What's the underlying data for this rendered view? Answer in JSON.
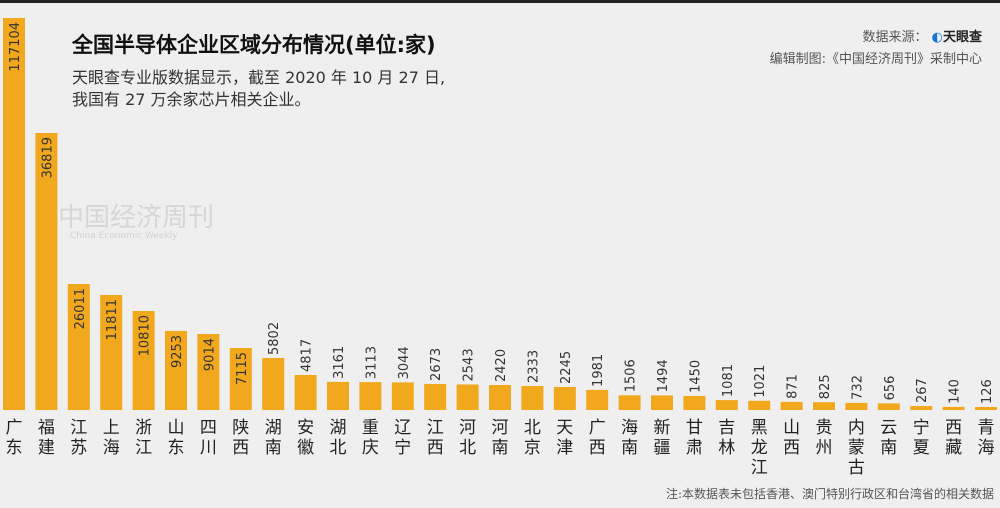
{
  "header": {
    "title": "全国半导体企业区域分布情况(单位:家)",
    "subtitle_line1": "天眼查专业版数据显示，截至 2020 年 10 月 27 日,",
    "subtitle_line2": "我国有 27 万余家芯片相关企业。",
    "source_label": "数据来源：",
    "source_logo": "天眼查",
    "editor": "编辑制图:《中国经济周刊》采制中心"
  },
  "watermark": {
    "cn": "中国经济周刊",
    "en": "China Economic Weekly"
  },
  "note": "注:本数据表未包括香港、澳门特别行政区和台湾省的相关数据",
  "colors": {
    "bar": "#f2a81d",
    "background": "#efefef"
  },
  "chart_data": {
    "type": "bar",
    "title": "全国半导体企业区域分布情况(单位:家)",
    "categories": [
      "广东",
      "福建",
      "江苏",
      "上海",
      "浙江",
      "山东",
      "四川",
      "陕西",
      "湖南",
      "安徽",
      "湖北",
      "重庆",
      "辽宁",
      "江西",
      "河北",
      "河南",
      "北京",
      "天津",
      "广西",
      "海南",
      "新疆",
      "甘肃",
      "吉林",
      "黑龙江",
      "山西",
      "贵州",
      "内蒙古",
      "云南",
      "宁夏",
      "西藏",
      "青海"
    ],
    "values": [
      117104,
      36819,
      26011,
      11811,
      10810,
      9253,
      9014,
      7115,
      5802,
      4817,
      3161,
      3113,
      3044,
      2673,
      2543,
      2420,
      2333,
      2245,
      1981,
      1506,
      1494,
      1450,
      1081,
      1021,
      871,
      825,
      732,
      656,
      267,
      140,
      126
    ],
    "xlabel": "",
    "ylabel": "",
    "grid": false,
    "legend": "none",
    "axis_scale": "broken / non-linear"
  }
}
